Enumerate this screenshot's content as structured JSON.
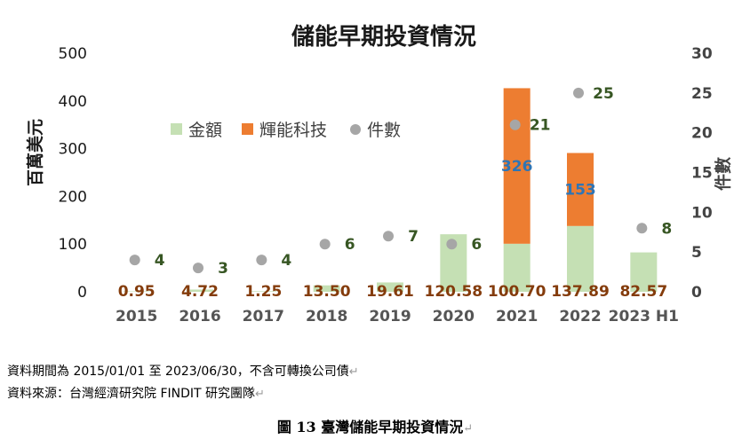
{
  "chart_data": {
    "type": "bar",
    "title": "儲能早期投資情況",
    "ylabel": "百萬美元",
    "y2label": "件數",
    "ylim": [
      0,
      500
    ],
    "y2lim": [
      0,
      30
    ],
    "yticks": [
      "0",
      "100",
      "200",
      "300",
      "400",
      "500"
    ],
    "y2ticks": [
      "0",
      "5",
      "10",
      "15",
      "20",
      "25",
      "30"
    ],
    "categories": [
      "2015",
      "2016",
      "2017",
      "2018",
      "2019",
      "2020",
      "2021",
      "2022",
      "2023 H1"
    ],
    "legend_position": "top-left",
    "series": [
      {
        "name": "金額",
        "kind": "bar",
        "color": "#c5e0b4",
        "values": [
          0.95,
          4.72,
          1.25,
          13.5,
          19.61,
          120.58,
          100.7,
          137.89,
          82.57
        ],
        "labels": [
          "0.95",
          "4.72",
          "1.25",
          "13.50",
          "19.61",
          "120.58",
          "100.70",
          "137.89",
          "82.57"
        ],
        "label_color": "#843c0c"
      },
      {
        "name": "輝能科技",
        "kind": "bar",
        "color": "#ed7d31",
        "values": [
          0,
          0,
          0,
          0,
          0,
          0,
          326,
          153,
          0
        ],
        "labels": [
          "",
          "",
          "",
          "",
          "",
          "",
          "326",
          "153",
          ""
        ],
        "label_color": "#2e75b6"
      },
      {
        "name": "件數",
        "kind": "scatter",
        "axis": "right",
        "color": "#a6a6a6",
        "values": [
          4,
          3,
          4,
          6,
          7,
          6,
          21,
          25,
          8
        ],
        "labels": [
          "4",
          "3",
          "4",
          "6",
          "7",
          "6",
          "21",
          "25",
          "8"
        ],
        "label_color": "#375623"
      }
    ]
  },
  "notes": {
    "period": "資料期間為 2015/01/01 至 2023/06/30，不含可轉換公司債",
    "source": "資料來源：台灣經濟研究院 FINDIT 研究團隊"
  },
  "caption": "圖 13  臺灣儲能早期投資情況",
  "paragraph_mark": "↵"
}
